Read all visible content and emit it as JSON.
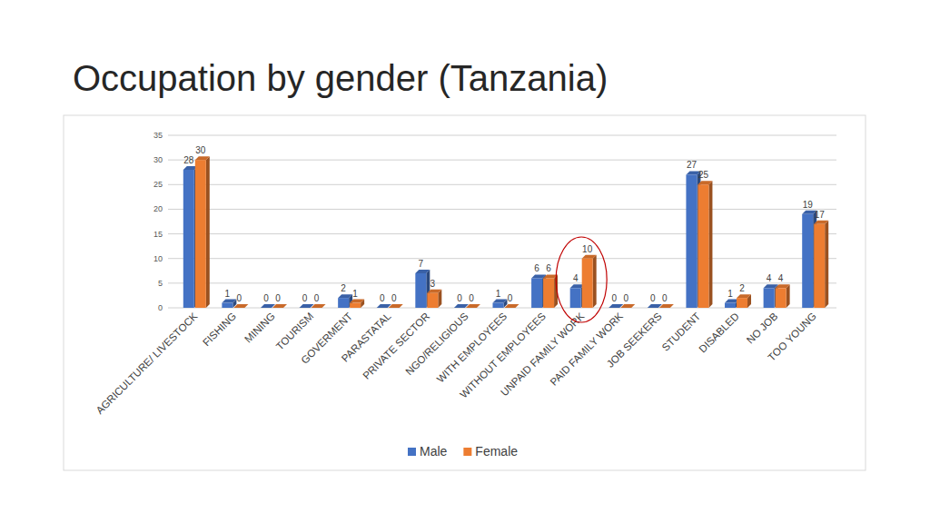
{
  "chart_data": {
    "type": "bar",
    "title": "Occupation by gender (Tanzania)",
    "categories": [
      "AGRICULTURE/ LIVESTOCK",
      "FISHING",
      "MINING",
      "TOURISM",
      "GOVERMENT",
      "PARASTATAL",
      "PRIVATE SECTOR",
      "NGO/RELIGIOUS",
      "WITH EMPLOYEES",
      "WITHOUT EMPLOYEES",
      "UNPAID FAMILY WORK",
      "PAID FAMILY WORK",
      "JOB SEEKERS",
      "STUDENT",
      "DISABLED",
      "NO JOB",
      "TOO YOUNG"
    ],
    "series": [
      {
        "name": "Male",
        "color": "#4472c4",
        "values": [
          28,
          1,
          0,
          0,
          2,
          0,
          7,
          0,
          1,
          6,
          4,
          0,
          0,
          27,
          1,
          4,
          19
        ]
      },
      {
        "name": "Female",
        "color": "#ed7d31",
        "values": [
          30,
          0,
          0,
          0,
          1,
          0,
          3,
          0,
          0,
          6,
          10,
          0,
          0,
          25,
          2,
          4,
          17
        ]
      }
    ],
    "ylim": [
      0,
      35
    ],
    "yticks": [
      0,
      5,
      10,
      15,
      20,
      25,
      30,
      35
    ],
    "grid": true,
    "legend": "bottom",
    "data_labels": true
  }
}
